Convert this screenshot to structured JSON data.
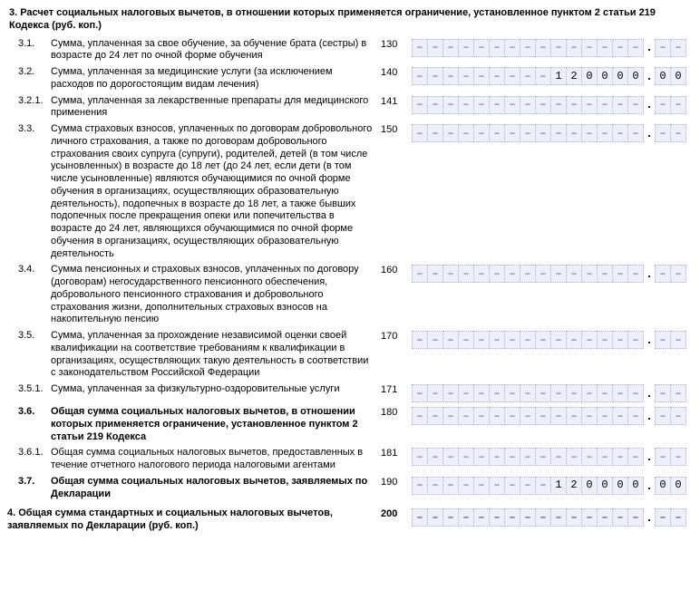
{
  "colors": {
    "cell_bg": "#edf0fa",
    "cell_border": "#a9b3d4",
    "dash": "#6a6a78"
  },
  "cell_dash": "–",
  "int_cells": 15,
  "dec_cells": 2,
  "section3": {
    "heading": "Расчет социальных налоговых вычетов, в отношении которых применяется ограничение, установленное пунктом 2 статьи 219 Кодекса (руб. коп.)",
    "rows": [
      {
        "num": "3.1.",
        "label": "Сумма, уплаченная за свое обучение, за обучение брата (сестры) в возрасте до 24 лет по очной форме обучения",
        "code": "130",
        "int": "",
        "dec": "",
        "bold": false
      },
      {
        "num": "3.2.",
        "label": "Сумма, уплаченная за медицинские услуги (за исключением расходов по дорогостоящим видам лечения)",
        "code": "140",
        "int": "120000",
        "dec": "00",
        "bold": false
      },
      {
        "num": "3.2.1.",
        "label": "Сумма, уплаченная за лекарственные препараты для медицинского применения",
        "code": "141",
        "int": "",
        "dec": "",
        "bold": false
      },
      {
        "num": "3.3.",
        "label": "Сумма страховых взносов, уплаченных по договорам добровольного личного страхования, а также по договорам добровольного страхования своих супруга (супруги), родителей, детей (в том числе усыновленных) в возрасте до 18 лет (до 24 лет, если дети (в том числе усыновленные) являются обучающимися по очной форме обучения в организациях, осуществляющих образовательную деятельность), подопечных в возрасте до 18 лет, а также бывших подопечных после прекращения опеки или попечительства в возрасте до 24 лет, являющихся обучающимися по очной форме обучения в организациях, осуществляющих образовательную деятельность",
        "code": "150",
        "int": "",
        "dec": "",
        "bold": false
      },
      {
        "num": "3.4.",
        "label": "Сумма пенсионных и страховых взносов, уплаченных по договору (договорам) негосударственного пенсионного обеспечения, добровольного пенсионного страхования и добровольного страхования жизни, дополнительных страховых взносов на накопительную пенсию",
        "code": "160",
        "int": "",
        "dec": "",
        "bold": false
      },
      {
        "num": "3.5.",
        "label": "Сумма, уплаченная за прохождение независимой оценки своей квалификации на соответствие требованиям к квалификации в организациях, осуществляющих такую деятельность в соответствии с законодательством Российской Федерации",
        "code": "170",
        "int": "",
        "dec": "",
        "bold": false
      },
      {
        "num": "3.5.1.",
        "label": "Сумма, уплаченная за физкультурно-оздоровительные услуги",
        "code": "171",
        "int": "",
        "dec": "",
        "bold": false
      },
      {
        "num": "3.6.",
        "label": "Общая сумма социальных налоговых вычетов, в отношении которых применяется ограничение, установленное пунктом 2 статьи 219 Кодекса",
        "code": "180",
        "int": "",
        "dec": "",
        "bold": true
      },
      {
        "num": "3.6.1.",
        "label": "Общая сумма социальных налоговых вычетов, предоставленных в течение отчетного налогового периода налоговыми агентами",
        "code": "181",
        "int": "",
        "dec": "",
        "bold": false
      },
      {
        "num": "3.7.",
        "label": "Общая сумма социальных налоговых вычетов, заявляемых по Декларации",
        "code": "190",
        "int": "120000",
        "dec": "00",
        "bold": true
      }
    ]
  },
  "section4": {
    "num": "4.",
    "label": "Общая сумма стандартных и социальных налоговых вычетов, заявляемых по Декларации (руб. коп.)",
    "code": "200",
    "int": "",
    "dec": "",
    "bold": true
  }
}
